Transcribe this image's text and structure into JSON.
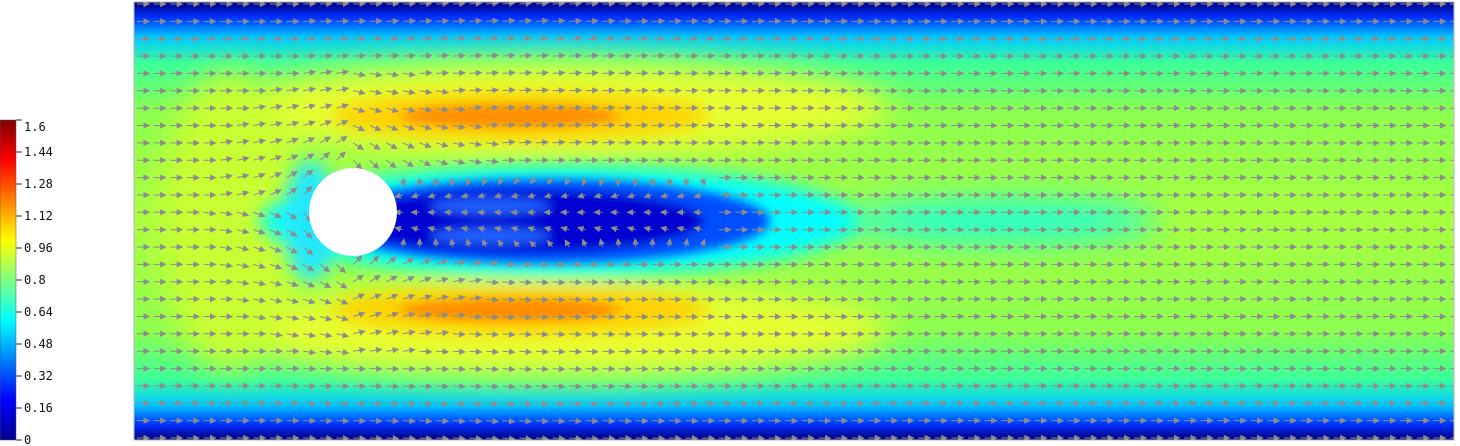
{
  "chart_data": {
    "type": "heatmap",
    "title": "",
    "xlabel": "",
    "ylabel": "",
    "colorbar": {
      "range": [
        0,
        1.6
      ],
      "ticks": [
        "1.6",
        "1.44",
        "1.28",
        "1.12",
        "0.96",
        "0.8",
        "0.64",
        "0.48",
        "0.32",
        "0.16",
        "0"
      ],
      "colormap": "jet"
    },
    "field": {
      "quantity": "velocity magnitude",
      "domain": "channel flow past a circular cylinder",
      "obstacle": "cylinder",
      "vectors": "velocity arrows",
      "min": 0,
      "max": 1.6
    }
  },
  "colors": {
    "arrow": "#8c8c8c",
    "obstacle": "#ffffff",
    "frame": "#b8b8b8"
  }
}
